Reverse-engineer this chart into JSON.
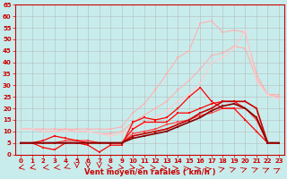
{
  "xlabel": "Vent moyen/en rafales ( km/h )",
  "bg_color": "#c8ecec",
  "grid_color": "#b0b0b0",
  "x_values": [
    0,
    1,
    2,
    3,
    4,
    5,
    6,
    7,
    8,
    9,
    10,
    11,
    12,
    13,
    14,
    15,
    16,
    17,
    18,
    19,
    20,
    21,
    22,
    23
  ],
  "series": [
    {
      "color": "#ffb0b0",
      "linewidth": 0.8,
      "markersize": 2.0,
      "y": [
        11,
        11,
        11,
        11,
        11,
        11,
        11,
        11,
        11,
        12,
        18,
        22,
        28,
        35,
        42,
        45,
        57,
        58,
        53,
        54,
        53,
        35,
        26,
        26
      ]
    },
    {
      "color": "#ffb0b0",
      "linewidth": 0.8,
      "markersize": 2.0,
      "y": [
        11,
        11,
        10,
        10,
        11,
        10,
        10,
        9,
        9,
        10,
        14,
        17,
        20,
        23,
        28,
        32,
        37,
        43,
        44,
        47,
        46,
        33,
        26,
        25
      ]
    },
    {
      "color": "#ffcccc",
      "linewidth": 0.8,
      "markersize": 2.0,
      "y": [
        11,
        11,
        10,
        10,
        10,
        10,
        10,
        9,
        8,
        9,
        12,
        13,
        16,
        19,
        23,
        26,
        31,
        40,
        42,
        46,
        54,
        32,
        26,
        24
      ]
    },
    {
      "color": "#ff4444",
      "linewidth": 0.9,
      "markersize": 2.0,
      "y": [
        5,
        5,
        5,
        5,
        6,
        6,
        6,
        5,
        5,
        5,
        9,
        10,
        11,
        13,
        14,
        15,
        17,
        18,
        20,
        20,
        20,
        15,
        5,
        5
      ]
    },
    {
      "color": "#ff0000",
      "linewidth": 0.9,
      "markersize": 2.0,
      "y": [
        5,
        5,
        6,
        8,
        7,
        6,
        5,
        5,
        5,
        5,
        11,
        14,
        14,
        14,
        18,
        18,
        20,
        22,
        23,
        23,
        20,
        16,
        5,
        5
      ]
    },
    {
      "color": "#ff0000",
      "linewidth": 0.9,
      "markersize": 2.0,
      "y": [
        5,
        5,
        3,
        2,
        5,
        5,
        4,
        1,
        4,
        4,
        14,
        16,
        15,
        16,
        20,
        25,
        29,
        23,
        20,
        20,
        15,
        10,
        5,
        5
      ]
    },
    {
      "color": "#cc0000",
      "linewidth": 1.2,
      "markersize": 2.0,
      "y": [
        5,
        5,
        5,
        5,
        5,
        5,
        5,
        5,
        5,
        5,
        8,
        9,
        10,
        11,
        13,
        15,
        18,
        20,
        23,
        23,
        23,
        20,
        5,
        5
      ]
    },
    {
      "color": "#880000",
      "linewidth": 1.2,
      "markersize": 2.0,
      "y": [
        5,
        5,
        5,
        5,
        5,
        5,
        5,
        5,
        5,
        5,
        7,
        8,
        9,
        10,
        12,
        14,
        16,
        19,
        21,
        22,
        20,
        16,
        5,
        5
      ]
    }
  ],
  "ylim": [
    0,
    65
  ],
  "xlim": [
    -0.5,
    23.5
  ],
  "yticks": [
    0,
    5,
    10,
    15,
    20,
    25,
    30,
    35,
    40,
    45,
    50,
    55,
    60,
    65
  ],
  "xticks": [
    0,
    1,
    2,
    3,
    4,
    5,
    6,
    7,
    8,
    9,
    10,
    11,
    12,
    13,
    14,
    15,
    16,
    17,
    18,
    19,
    20,
    21,
    22,
    23
  ],
  "tick_fontsize": 5.0,
  "xlabel_fontsize": 6.0,
  "tick_color": "#cc0000",
  "xlabel_color": "#cc0000",
  "xlabel_fontweight": "bold"
}
